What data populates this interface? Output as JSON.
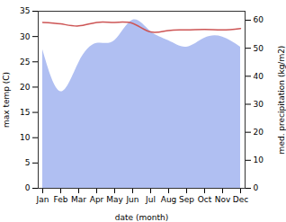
{
  "chart_data": {
    "type": "line",
    "x_label": "date (month)",
    "categories": [
      "Jan",
      "Feb",
      "Mar",
      "Apr",
      "May",
      "Jun",
      "Jul",
      "Aug",
      "Sep",
      "Oct",
      "Nov",
      "Dec"
    ],
    "ylim": [
      0,
      35
    ],
    "yticks": [
      0,
      5,
      10,
      15,
      20,
      25,
      30,
      35
    ],
    "y2lim": [
      0,
      63.2
    ],
    "y2ticks": [
      0,
      10,
      20,
      30,
      40,
      50,
      60
    ],
    "series": [
      {
        "name": "med. precipitation (kg/m2)",
        "type": "area",
        "axis": "y2",
        "color": "#b0bff2",
        "values": [
          49.5,
          34.5,
          44.7,
          51.7,
          52.7,
          60,
          56,
          52.7,
          50.4,
          53.6,
          54,
          50.4
        ]
      },
      {
        "name": "max temp (C)",
        "type": "line",
        "color": "#cd5555",
        "values": [
          32.8,
          32.5,
          32.1,
          32.8,
          32.8,
          32.6,
          30.9,
          31.2,
          31.3,
          31.4,
          31.3,
          31.6
        ]
      }
    ]
  }
}
